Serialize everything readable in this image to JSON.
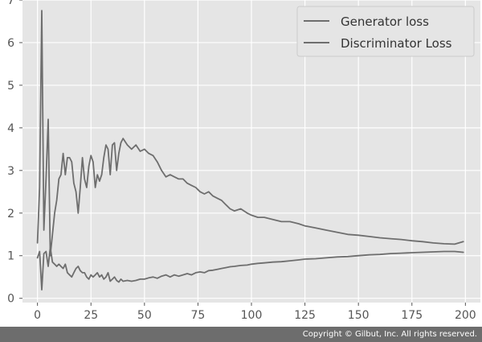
{
  "chart_data": {
    "type": "line",
    "title": "",
    "xlabel": "",
    "ylabel": "",
    "xlim": [
      -7,
      207
    ],
    "ylim": [
      -0.1,
      7.0
    ],
    "xticks": [
      0,
      25,
      50,
      75,
      100,
      125,
      150,
      175,
      200
    ],
    "yticks": [
      0,
      1,
      2,
      3,
      4,
      5,
      6,
      7
    ],
    "grid": true,
    "legend_position": "top-right",
    "series": [
      {
        "name": "Generator loss",
        "color": "#6e6e6e",
        "x": [
          0,
          1,
          2,
          3,
          4,
          5,
          6,
          7,
          8,
          9,
          10,
          11,
          12,
          13,
          14,
          15,
          16,
          17,
          18,
          19,
          20,
          21,
          22,
          23,
          24,
          25,
          26,
          27,
          28,
          29,
          30,
          31,
          32,
          33,
          34,
          35,
          36,
          37,
          38,
          39,
          40,
          42,
          44,
          46,
          48,
          50,
          52,
          54,
          56,
          58,
          60,
          62,
          64,
          66,
          68,
          70,
          72,
          74,
          76,
          78,
          80,
          82,
          84,
          86,
          88,
          90,
          92,
          95,
          98,
          100,
          103,
          106,
          110,
          114,
          118,
          122,
          125,
          130,
          135,
          140,
          145,
          150,
          155,
          160,
          165,
          170,
          175,
          180,
          185,
          190,
          195,
          199
        ],
        "values": [
          1.3,
          2.6,
          6.75,
          1.6,
          2.8,
          4.2,
          1.0,
          1.5,
          2.0,
          2.3,
          2.8,
          2.9,
          3.4,
          2.9,
          3.3,
          3.3,
          3.2,
          2.7,
          2.5,
          2.0,
          2.6,
          3.3,
          2.8,
          2.6,
          3.1,
          3.35,
          3.2,
          2.6,
          2.9,
          2.75,
          2.9,
          3.3,
          3.6,
          3.5,
          2.9,
          3.6,
          3.65,
          3.0,
          3.4,
          3.65,
          3.75,
          3.6,
          3.5,
          3.6,
          3.45,
          3.5,
          3.4,
          3.35,
          3.2,
          3.0,
          2.85,
          2.9,
          2.85,
          2.8,
          2.8,
          2.7,
          2.65,
          2.6,
          2.5,
          2.45,
          2.5,
          2.4,
          2.35,
          2.3,
          2.2,
          2.1,
          2.05,
          2.1,
          2.0,
          1.95,
          1.9,
          1.9,
          1.85,
          1.8,
          1.8,
          1.75,
          1.7,
          1.65,
          1.6,
          1.55,
          1.5,
          1.48,
          1.45,
          1.42,
          1.4,
          1.38,
          1.35,
          1.33,
          1.3,
          1.28,
          1.27,
          1.33
        ]
      },
      {
        "name": "Discriminator Loss",
        "color": "#6e6e6e",
        "x": [
          0,
          1,
          2,
          3,
          4,
          5,
          6,
          7,
          8,
          9,
          10,
          11,
          12,
          13,
          14,
          15,
          16,
          17,
          18,
          19,
          20,
          21,
          22,
          23,
          24,
          25,
          26,
          27,
          28,
          29,
          30,
          31,
          32,
          33,
          34,
          35,
          36,
          37,
          38,
          39,
          40,
          42,
          44,
          46,
          48,
          50,
          52,
          54,
          56,
          58,
          60,
          62,
          64,
          66,
          68,
          70,
          72,
          74,
          76,
          78,
          80,
          82,
          84,
          86,
          88,
          90,
          92,
          95,
          98,
          100,
          103,
          106,
          110,
          114,
          118,
          122,
          125,
          130,
          135,
          140,
          145,
          150,
          155,
          160,
          165,
          170,
          175,
          180,
          185,
          190,
          195,
          199
        ],
        "values": [
          0.95,
          1.1,
          0.2,
          1.05,
          1.1,
          0.75,
          1.2,
          0.85,
          0.8,
          0.75,
          0.8,
          0.75,
          0.7,
          0.8,
          0.6,
          0.55,
          0.5,
          0.6,
          0.7,
          0.75,
          0.65,
          0.6,
          0.6,
          0.5,
          0.45,
          0.55,
          0.5,
          0.55,
          0.6,
          0.5,
          0.55,
          0.45,
          0.5,
          0.6,
          0.4,
          0.45,
          0.5,
          0.42,
          0.38,
          0.45,
          0.4,
          0.42,
          0.4,
          0.42,
          0.45,
          0.45,
          0.48,
          0.5,
          0.47,
          0.52,
          0.55,
          0.5,
          0.55,
          0.52,
          0.55,
          0.58,
          0.55,
          0.6,
          0.62,
          0.6,
          0.65,
          0.66,
          0.68,
          0.7,
          0.72,
          0.74,
          0.75,
          0.77,
          0.78,
          0.8,
          0.82,
          0.83,
          0.85,
          0.86,
          0.88,
          0.9,
          0.92,
          0.93,
          0.95,
          0.97,
          0.98,
          1.0,
          1.02,
          1.03,
          1.05,
          1.06,
          1.07,
          1.08,
          1.09,
          1.1,
          1.1,
          1.08
        ]
      }
    ]
  },
  "footer": {
    "copyright": "Copyright © Gilbut, Inc. All rights reserved."
  }
}
